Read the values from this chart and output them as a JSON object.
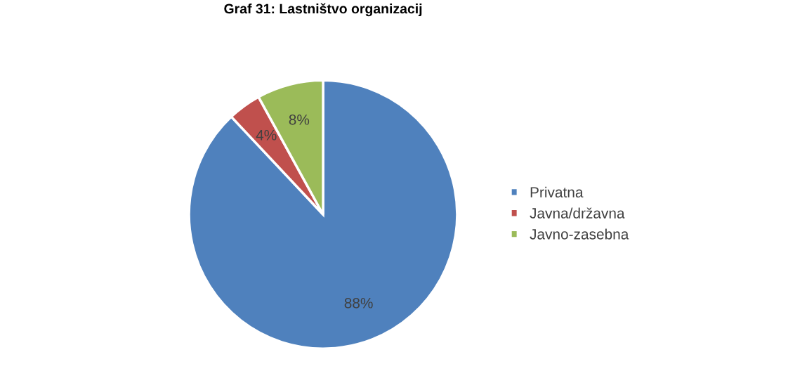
{
  "chart_data": {
    "type": "pie",
    "title": "Graf 31: Lastništvo organizacij",
    "categories": [
      "Privatna",
      "Javna/državna",
      "Javno-zasebna"
    ],
    "values": [
      88,
      4,
      8
    ],
    "colors": [
      "#4f81bd",
      "#c0504d",
      "#9bbb59"
    ],
    "value_labels": [
      "88%",
      "4%",
      "8%"
    ],
    "legend": "right"
  }
}
